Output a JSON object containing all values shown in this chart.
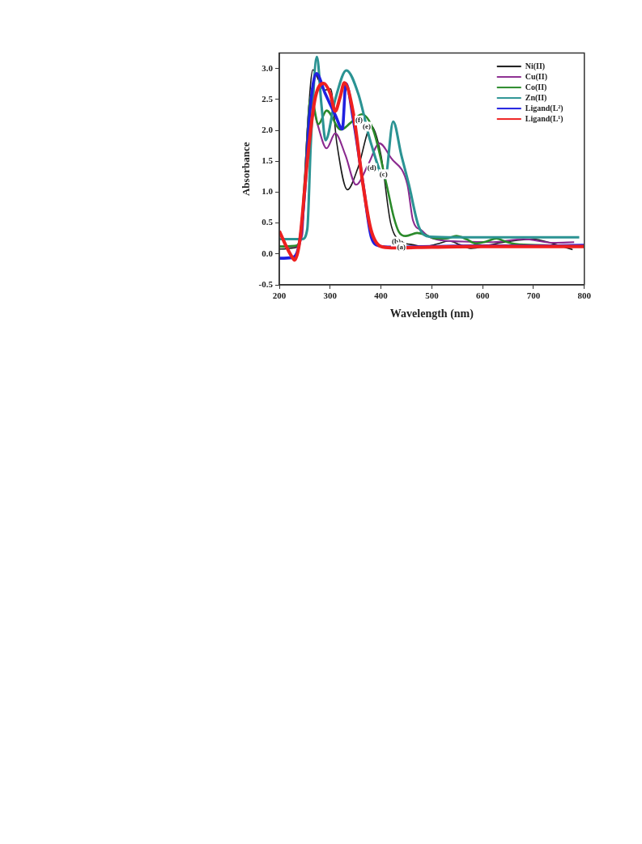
{
  "chart_data": {
    "type": "line",
    "xlabel": "Wavelength (nm)",
    "ylabel": "Absorbance",
    "xlim": [
      200,
      800
    ],
    "xticks": [
      200,
      300,
      400,
      500,
      600,
      700,
      800
    ],
    "ylim": [
      -0.5,
      3.25
    ],
    "yticks": [
      -0.5,
      {
        "value": 0,
        "label": "0.0"
      },
      0.5,
      {
        "value": 1,
        "label": "1.0"
      },
      1.5,
      {
        "value": 2,
        "label": "2.0"
      },
      2.5,
      {
        "value": 3,
        "label": "3.0"
      }
    ],
    "grid": false,
    "legend": "top right",
    "marker": "none",
    "line_style": "solid",
    "series": [
      {
        "name": "Ni(II)",
        "color": "#1a1a1a",
        "x": [
          200,
          230,
          245,
          255,
          266,
          278,
          288,
          301,
          313,
          334,
          355,
          381,
          400,
          419,
          441,
          462,
          485,
          510,
          534,
          555,
          578,
          610,
          650,
          700,
          740,
          777
        ],
        "values": [
          0.08,
          0.1,
          0.5,
          2.0,
          2.98,
          2.8,
          2.65,
          2.67,
          1.8,
          1.04,
          1.4,
          2.07,
          1.6,
          0.5,
          0.2,
          0.15,
          0.12,
          0.16,
          0.21,
          0.15,
          0.09,
          0.14,
          0.2,
          0.24,
          0.16,
          0.07
        ]
      },
      {
        "name": "Cu(II)",
        "color": "#8b2a8f",
        "x": [
          200,
          230,
          245,
          252,
          261,
          275,
          293,
          310,
          330,
          351,
          375,
          397,
          420,
          452,
          463,
          480,
          496,
          520,
          560,
          620,
          680,
          740,
          780
        ],
        "values": [
          0.12,
          0.12,
          0.3,
          1.5,
          2.51,
          2.1,
          1.71,
          1.95,
          1.6,
          1.12,
          1.45,
          1.79,
          1.55,
          1.12,
          0.54,
          0.38,
          0.27,
          0.22,
          0.2,
          0.19,
          0.24,
          0.18,
          0.19
        ]
      },
      {
        "name": "Co(II)",
        "color": "#2a8a2a",
        "x": [
          200,
          230,
          240,
          250,
          262,
          277,
          293,
          321,
          340,
          362,
          385,
          411,
          425,
          435,
          449,
          471,
          490,
          507,
          528,
          548,
          568,
          586,
          607,
          627,
          645,
          665,
          720,
          780
        ],
        "values": [
          0.12,
          0.13,
          0.2,
          1.2,
          2.56,
          2.1,
          2.32,
          2.01,
          2.12,
          2.26,
          2.0,
          1.12,
          0.6,
          0.36,
          0.29,
          0.34,
          0.3,
          0.25,
          0.25,
          0.29,
          0.24,
          0.17,
          0.2,
          0.25,
          0.2,
          0.16,
          0.14,
          0.12
        ]
      },
      {
        "name": "Zn(II)",
        "color": "#2b9393",
        "x": [
          200,
          245,
          255,
          262,
          274,
          283,
          291,
          310,
          332,
          355,
          380,
          408,
          424,
          440,
          455,
          474,
          496,
          550,
          650,
          790
        ],
        "values": [
          0.24,
          0.24,
          0.4,
          1.8,
          3.19,
          2.4,
          1.84,
          2.5,
          2.97,
          2.6,
          1.8,
          1.23,
          2.14,
          1.6,
          1.12,
          0.45,
          0.28,
          0.27,
          0.27,
          0.27
        ]
      },
      {
        "name": "Ligand(L²)",
        "color": "#2020e0",
        "x": [
          200,
          225,
          240,
          250,
          260,
          273,
          290,
          310,
          324,
          331,
          345,
          365,
          381,
          397,
          420,
          500,
          600,
          700,
          800
        ],
        "values": [
          -0.07,
          -0.06,
          0.2,
          1.0,
          2.3,
          2.92,
          2.6,
          2.25,
          2.02,
          2.76,
          2.2,
          1.12,
          0.27,
          0.13,
          0.11,
          0.12,
          0.13,
          0.13,
          0.14
        ]
      },
      {
        "name": "Ligand(L¹)",
        "color": "#ee2020",
        "x": [
          200,
          215,
          225,
          230,
          240,
          255,
          270,
          287,
          300,
          310,
          320,
          328,
          345,
          365,
          380,
          400,
          420,
          500,
          600,
          700,
          800
        ],
        "values": [
          0.37,
          0.1,
          -0.05,
          -0.1,
          0.2,
          1.5,
          2.5,
          2.76,
          2.6,
          2.31,
          2.55,
          2.77,
          2.3,
          1.1,
          0.4,
          0.12,
          0.1,
          0.11,
          0.12,
          0.12,
          0.12
        ]
      }
    ],
    "annotations": [
      {
        "text": "(f)",
        "x": 357,
        "y": 2.16
      },
      {
        "text": "(e)",
        "x": 372,
        "y": 2.06
      },
      {
        "text": "(d)",
        "x": 382,
        "y": 1.39
      },
      {
        "text": "(c)",
        "x": 405,
        "y": 1.29
      },
      {
        "text": "(b)",
        "x": 430,
        "y": 0.2
      },
      {
        "text": "(a)",
        "x": 440,
        "y": 0.11
      }
    ]
  }
}
